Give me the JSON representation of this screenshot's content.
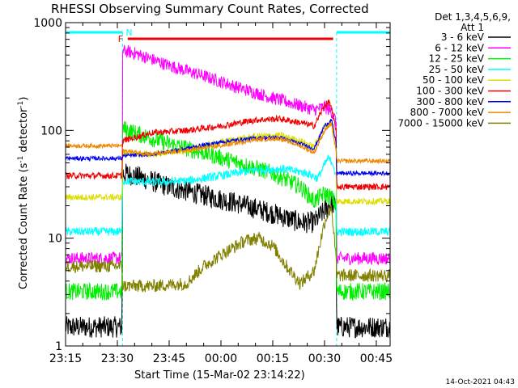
{
  "colors": {
    "frame": "#000000",
    "attenuator_band": "#00ffff",
    "flare_bar": "#ee0000",
    "flare_marker": "#ee0000",
    "night_marker": "#00ffff"
  },
  "markers": {
    "flare": "F",
    "night": "N"
  },
  "footer": {
    "date": "14-Oct-2021 04:43"
  },
  "chart_data": {
    "type": "line",
    "title": "RHESSI Observing Summary Count Rates, Corrected",
    "xlabel": "Start Time (15-Mar-02 23:14:22)",
    "ylabel_main": "Corrected Count Rate (s",
    "ylabel_sup1": "-1",
    "ylabel_mid": " detector",
    "ylabel_sup2": "-1",
    "ylabel_end": ")",
    "y_scale": "log",
    "xlim": [
      0,
      94
    ],
    "ylim": [
      1,
      1000
    ],
    "x_ticks": [
      {
        "x": 0,
        "label": "23:15"
      },
      {
        "x": 15,
        "label": "23:30"
      },
      {
        "x": 30,
        "label": "23:45"
      },
      {
        "x": 45,
        "label": "00:00"
      },
      {
        "x": 60,
        "label": "00:15"
      },
      {
        "x": 75,
        "label": "00:30"
      },
      {
        "x": 90,
        "label": "00:45"
      }
    ],
    "y_ticks": [
      {
        "y": 1,
        "label": "1"
      },
      {
        "y": 10,
        "label": "10"
      },
      {
        "y": 100,
        "label": "100"
      },
      {
        "y": 1000,
        "label": "1000"
      }
    ],
    "legend_header": [
      "Det 1,3,4,5,6,9,",
      "Att 1"
    ],
    "legend_position": "top-right",
    "attenuator_intervals": [
      [
        -1,
        16.5
      ],
      [
        78.5,
        96
      ]
    ],
    "flare_interval": [
      18,
      77.5
    ],
    "series": [
      {
        "name": "3 - 6 keV",
        "color": "#000000",
        "noise": 0.1,
        "points": [
          [
            -1,
            1.5
          ],
          [
            16.4,
            1.5
          ],
          [
            16.5,
            40
          ],
          [
            20,
            38
          ],
          [
            30,
            30
          ],
          [
            40,
            25
          ],
          [
            50,
            21
          ],
          [
            60,
            17
          ],
          [
            68,
            14
          ],
          [
            72,
            14
          ],
          [
            75,
            18
          ],
          [
            77,
            21
          ],
          [
            78.4,
            20
          ],
          [
            78.5,
            1.5
          ],
          [
            96,
            1.5
          ]
        ]
      },
      {
        "name": "6 - 12 keV",
        "color": "#ff00ff",
        "noise": 0.06,
        "points": [
          [
            -1,
            6.5
          ],
          [
            16.4,
            6.5
          ],
          [
            16.5,
            550
          ],
          [
            20,
            520
          ],
          [
            30,
            400
          ],
          [
            40,
            320
          ],
          [
            50,
            250
          ],
          [
            60,
            200
          ],
          [
            68,
            170
          ],
          [
            72,
            155
          ],
          [
            75,
            165
          ],
          [
            77,
            150
          ],
          [
            78.4,
            120
          ],
          [
            78.5,
            6.5
          ],
          [
            96,
            6.5
          ]
        ]
      },
      {
        "name": "12 - 25 keV",
        "color": "#00ee00",
        "noise": 0.08,
        "points": [
          [
            -1,
            3.2
          ],
          [
            16.4,
            3.2
          ],
          [
            16.5,
            105
          ],
          [
            20,
            95
          ],
          [
            30,
            75
          ],
          [
            40,
            62
          ],
          [
            50,
            50
          ],
          [
            60,
            40
          ],
          [
            68,
            30
          ],
          [
            72,
            22
          ],
          [
            75,
            26
          ],
          [
            77,
            24
          ],
          [
            78.4,
            20
          ],
          [
            78.5,
            3.2
          ],
          [
            96,
            3.2
          ]
        ]
      },
      {
        "name": "25 - 50 keV",
        "color": "#00ffff",
        "noise": 0.04,
        "points": [
          [
            -1,
            11.5
          ],
          [
            16.4,
            11.5
          ],
          [
            16.5,
            34
          ],
          [
            25,
            33
          ],
          [
            35,
            34
          ],
          [
            45,
            38
          ],
          [
            55,
            43
          ],
          [
            63,
            44
          ],
          [
            70,
            40
          ],
          [
            73,
            36
          ],
          [
            76,
            55
          ],
          [
            77.5,
            50
          ],
          [
            78.4,
            35
          ],
          [
            78.5,
            11.5
          ],
          [
            96,
            11.5
          ]
        ]
      },
      {
        "name": "50 - 100 keV",
        "color": "#dddd00",
        "noise": 0.03,
        "points": [
          [
            -1,
            24
          ],
          [
            16.4,
            24
          ],
          [
            16.5,
            62
          ],
          [
            25,
            60
          ],
          [
            35,
            65
          ],
          [
            45,
            78
          ],
          [
            55,
            88
          ],
          [
            62,
            90
          ],
          [
            68,
            80
          ],
          [
            72,
            70
          ],
          [
            75,
            110
          ],
          [
            77,
            115
          ],
          [
            78.4,
            60
          ],
          [
            78.5,
            22
          ],
          [
            96,
            22
          ]
        ]
      },
      {
        "name": "100 - 300 keV",
        "color": "#ee0000",
        "noise": 0.03,
        "points": [
          [
            -1,
            38
          ],
          [
            16.4,
            38
          ],
          [
            16.5,
            80
          ],
          [
            25,
            95
          ],
          [
            35,
            100
          ],
          [
            45,
            110
          ],
          [
            55,
            125
          ],
          [
            62,
            128
          ],
          [
            68,
            118
          ],
          [
            72,
            110
          ],
          [
            75,
            170
          ],
          [
            76.5,
            185
          ],
          [
            78.4,
            100
          ],
          [
            78.5,
            30
          ],
          [
            96,
            30
          ]
        ]
      },
      {
        "name": "300 - 800 keV",
        "color": "#0000ee",
        "noise": 0.02,
        "points": [
          [
            -1,
            55
          ],
          [
            16.4,
            55
          ],
          [
            16.5,
            58
          ],
          [
            25,
            60
          ],
          [
            35,
            68
          ],
          [
            45,
            78
          ],
          [
            55,
            85
          ],
          [
            62,
            86
          ],
          [
            68,
            75
          ],
          [
            72,
            68
          ],
          [
            75,
            110
          ],
          [
            77,
            125
          ],
          [
            78.4,
            75
          ],
          [
            78.5,
            40
          ],
          [
            96,
            40
          ]
        ]
      },
      {
        "name": "800 - 7000 keV",
        "color": "#ee8800",
        "noise": 0.02,
        "points": [
          [
            -1,
            72
          ],
          [
            16.4,
            72
          ],
          [
            16.5,
            65
          ],
          [
            25,
            60
          ],
          [
            35,
            65
          ],
          [
            45,
            72
          ],
          [
            55,
            82
          ],
          [
            62,
            84
          ],
          [
            68,
            72
          ],
          [
            72,
            62
          ],
          [
            75,
            100
          ],
          [
            77,
            115
          ],
          [
            78.4,
            65
          ],
          [
            78.5,
            52
          ],
          [
            96,
            52
          ]
        ]
      },
      {
        "name": "7000 - 15000 keV",
        "color": "#808000",
        "noise": 0.06,
        "points": [
          [
            -1,
            5.5
          ],
          [
            16.4,
            5.5
          ],
          [
            16.5,
            3.6
          ],
          [
            25,
            3.6
          ],
          [
            35,
            3.8
          ],
          [
            40,
            5.5
          ],
          [
            45,
            7
          ],
          [
            52,
            9.5
          ],
          [
            56,
            10
          ],
          [
            60,
            8.5
          ],
          [
            64,
            5.5
          ],
          [
            68,
            3.8
          ],
          [
            72,
            5
          ],
          [
            75,
            14
          ],
          [
            77,
            20
          ],
          [
            78.4,
            6
          ],
          [
            78.5,
            4.5
          ],
          [
            96,
            4.5
          ]
        ]
      }
    ]
  }
}
